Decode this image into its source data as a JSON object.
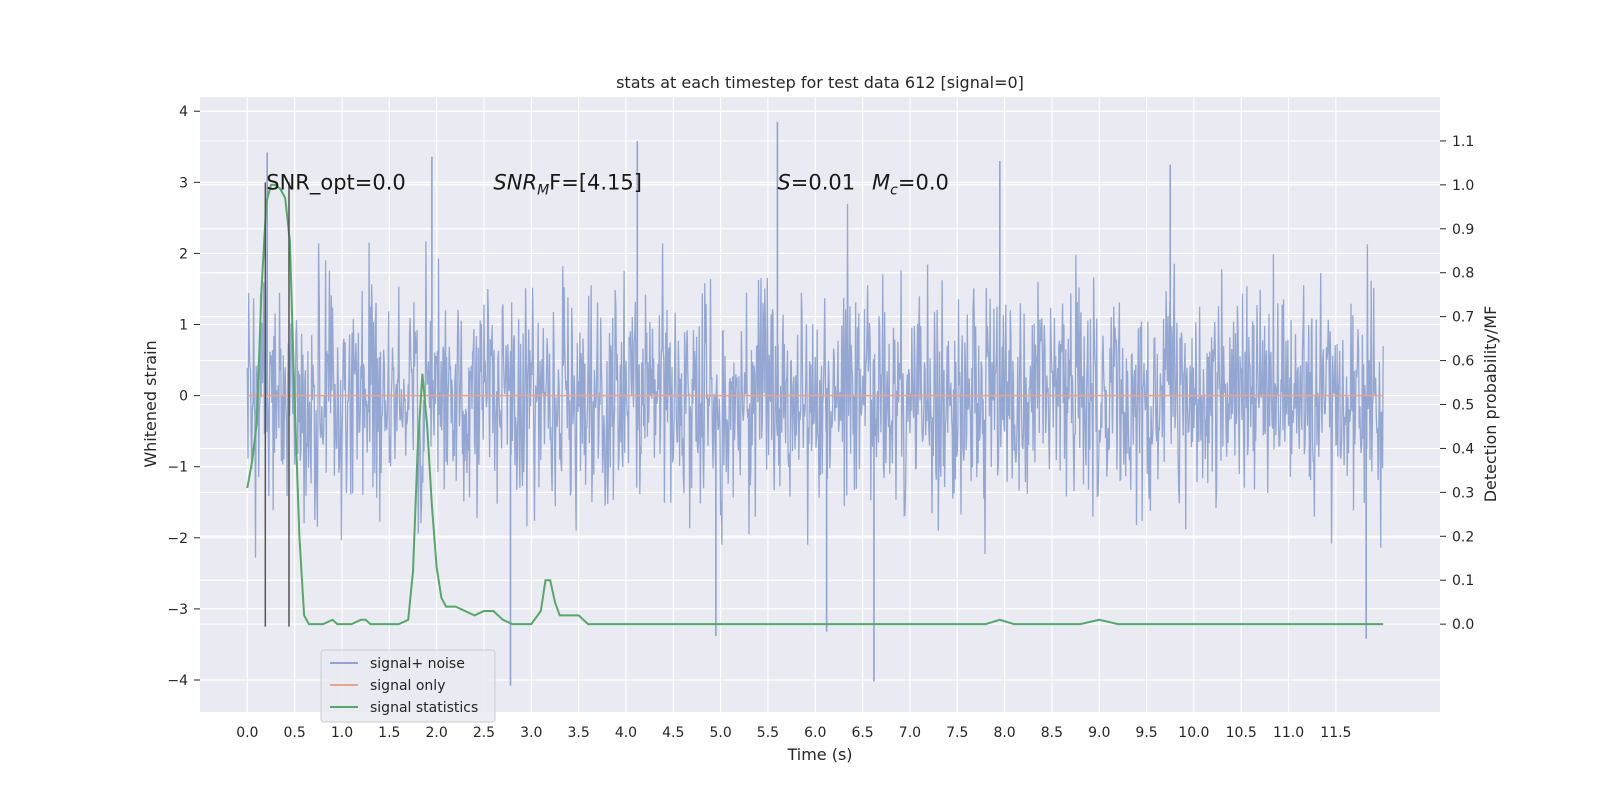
{
  "chart_data": {
    "type": "line",
    "title": "stats at each timestep for test data 612 [signal=0]",
    "xlabel": "Time (s)",
    "ylabel_left": "Whitened strain",
    "ylabel_right": "Detection probability/MF",
    "xlim": [
      -0.5,
      12.6
    ],
    "ylim_left": [
      -4.45,
      4.2
    ],
    "ylim_right": [
      -0.2,
      1.2
    ],
    "x_ticks": [
      0.0,
      0.5,
      1.0,
      1.5,
      2.0,
      2.5,
      3.0,
      3.5,
      4.0,
      4.5,
      5.0,
      5.5,
      6.0,
      6.5,
      7.0,
      7.5,
      8.0,
      8.5,
      9.0,
      9.5,
      10.0,
      10.5,
      11.0,
      11.5
    ],
    "x_tick_labels": [
      "0.0",
      "0.5",
      "1.0",
      "1.5",
      "2.0",
      "2.5",
      "3.0",
      "3.5",
      "4.0",
      "4.5",
      "5.0",
      "5.5",
      "6.0",
      "6.5",
      "7.0",
      "7.5",
      "8.0",
      "8.5",
      "9.0",
      "9.5",
      "10.0",
      "10.5",
      "11.0",
      "11.5"
    ],
    "y_ticks_left": [
      -4,
      -3,
      -2,
      -1,
      0,
      1,
      2,
      3,
      4
    ],
    "y_tick_labels_left": [
      "−4",
      "−3",
      "−2",
      "−1",
      "0",
      "1",
      "2",
      "3",
      "4"
    ],
    "y_ticks_right": [
      0.0,
      0.1,
      0.2,
      0.3,
      0.4,
      0.5,
      0.6,
      0.7,
      0.8,
      0.9,
      1.0,
      1.1
    ],
    "y_tick_labels_right": [
      "0.0",
      "0.1",
      "0.2",
      "0.3",
      "0.4",
      "0.5",
      "0.6",
      "0.7",
      "0.8",
      "0.9",
      "1.0",
      "1.1"
    ],
    "grid": true,
    "legend_position": "lower-left",
    "annotations": [
      {
        "text": "SNR_opt=0.0",
        "x": 0.2,
        "y": 3.0,
        "axis": "left"
      },
      {
        "text": "SNR",
        "sub": "M",
        "suffix": "F=[4.15]",
        "italic_base": true,
        "x": 2.6,
        "y": 3.0,
        "axis": "left"
      },
      {
        "text": "S",
        "suffix": "=0.01",
        "italic_base": true,
        "x": 5.6,
        "y": 3.0,
        "axis": "left"
      },
      {
        "text": "M",
        "sub": "c",
        "suffix": "=0.0",
        "italic_base": true,
        "x": 6.6,
        "y": 3.0,
        "axis": "left"
      }
    ],
    "vlines": [
      {
        "x": 0.19,
        "y_from": -3.25,
        "y_to": 3.0,
        "axis": "left",
        "color": "#555555"
      },
      {
        "x": 0.44,
        "y_from": -3.25,
        "y_to": 3.0,
        "axis": "left",
        "color": "#555555"
      }
    ],
    "series": [
      {
        "name": "signal+ noise",
        "axis": "left",
        "color": "#8fa3d0",
        "kind": "noise",
        "x_range": [
          0.0,
          12.0
        ],
        "envelope_peaks": [
          {
            "x": 0.21,
            "y": 3.42
          },
          {
            "x": 1.95,
            "y": 3.36
          },
          {
            "x": 4.12,
            "y": 3.58
          },
          {
            "x": 5.6,
            "y": 3.85
          },
          {
            "x": 7.95,
            "y": 3.3
          },
          {
            "x": 9.75,
            "y": 3.25
          },
          {
            "x": 2.78,
            "y": -4.08
          },
          {
            "x": 6.62,
            "y": -4.02
          },
          {
            "x": 11.82,
            "y": -3.42
          },
          {
            "x": 4.95,
            "y": -3.38
          },
          {
            "x": 6.12,
            "y": -3.32
          }
        ]
      },
      {
        "name": "signal only",
        "axis": "left",
        "color": "#e8a58c",
        "x": [
          0.0,
          12.0
        ],
        "y": [
          0.0,
          0.0
        ]
      },
      {
        "name": "signal statistics",
        "axis": "right",
        "color": "#55a868",
        "x": [
          0.0,
          0.05,
          0.1,
          0.15,
          0.2,
          0.25,
          0.3,
          0.35,
          0.4,
          0.45,
          0.5,
          0.55,
          0.6,
          0.65,
          0.7,
          0.8,
          0.9,
          0.95,
          1.0,
          1.1,
          1.2,
          1.25,
          1.3,
          1.4,
          1.5,
          1.6,
          1.7,
          1.75,
          1.8,
          1.85,
          1.9,
          1.95,
          2.0,
          2.05,
          2.1,
          2.15,
          2.2,
          2.3,
          2.4,
          2.5,
          2.6,
          2.7,
          2.8,
          2.9,
          3.0,
          3.1,
          3.15,
          3.2,
          3.25,
          3.3,
          3.35,
          3.4,
          3.5,
          3.55,
          3.6,
          3.7,
          3.8,
          4.0,
          4.5,
          5.0,
          5.5,
          6.0,
          6.5,
          7.0,
          7.5,
          7.8,
          7.95,
          8.1,
          8.5,
          8.8,
          9.0,
          9.2,
          9.5,
          10.0,
          10.5,
          11.0,
          11.5,
          12.0
        ],
        "y": [
          0.31,
          0.37,
          0.46,
          0.76,
          0.96,
          1.0,
          1.0,
          0.99,
          0.97,
          0.87,
          0.5,
          0.2,
          0.02,
          0.0,
          0.0,
          0.0,
          0.01,
          0.0,
          0.0,
          0.0,
          0.01,
          0.01,
          0.0,
          0.0,
          0.0,
          0.0,
          0.01,
          0.12,
          0.4,
          0.57,
          0.45,
          0.27,
          0.13,
          0.06,
          0.04,
          0.04,
          0.04,
          0.03,
          0.02,
          0.03,
          0.03,
          0.01,
          0.0,
          0.0,
          0.0,
          0.03,
          0.1,
          0.1,
          0.05,
          0.02,
          0.02,
          0.02,
          0.02,
          0.01,
          0.0,
          0.0,
          0.0,
          0.0,
          0.0,
          0.0,
          0.0,
          0.0,
          0.0,
          0.0,
          0.0,
          0.0,
          0.01,
          0.0,
          0.0,
          0.0,
          0.01,
          0.0,
          0.0,
          0.0,
          0.0,
          0.0,
          0.0,
          0.0
        ]
      }
    ]
  },
  "legend": {
    "items": [
      {
        "label": "signal+ noise",
        "color": "#8fa3d0"
      },
      {
        "label": "signal only",
        "color": "#e8a58c"
      },
      {
        "label": "signal statistics",
        "color": "#55a868"
      }
    ]
  },
  "style": {
    "plot_background": "#eaeaf2",
    "grid_color": "#ffffff",
    "page_background": "#ffffff"
  }
}
